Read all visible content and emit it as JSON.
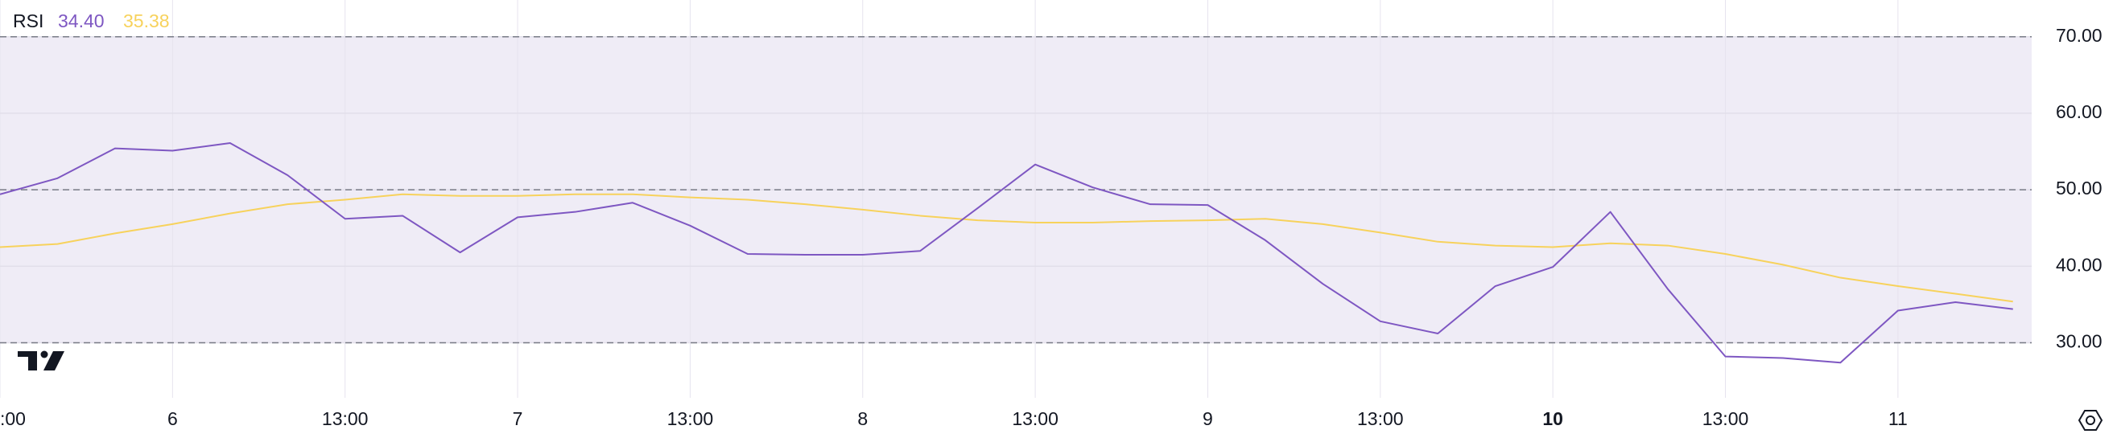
{
  "chart_data": {
    "type": "line",
    "legend": {
      "title": "RSI",
      "values": [
        {
          "value": 34.4,
          "label": "34.40"
        },
        35.38
      ]
    },
    "categories": [
      ":00",
      null,
      null,
      "6",
      null,
      null,
      "13:00",
      null,
      null,
      "7",
      null,
      null,
      "13:00",
      null,
      null,
      "8",
      null,
      null,
      "13:00",
      null,
      null,
      "9",
      null,
      null,
      "13:00",
      null,
      null,
      "10",
      null,
      null,
      "13:00",
      null,
      null,
      "11",
      null,
      null
    ],
    "series": [
      {
        "name": "RSI",
        "color": "#7e57c2",
        "values": [
          49.4,
          51.5,
          55.4,
          55.1,
          56.1,
          51.9,
          46.2,
          46.6,
          41.8,
          46.4,
          47.1,
          48.3,
          45.3,
          41.6,
          41.5,
          41.5,
          42.0,
          47.6,
          53.3,
          50.3,
          48.1,
          48.0,
          43.4,
          37.7,
          32.8,
          31.2,
          37.4,
          39.9,
          47.1,
          37.0,
          28.2,
          28.0,
          27.4,
          34.2,
          35.3,
          34.4
        ]
      },
      {
        "color": "#f7d25c",
        "values": [
          42.5,
          42.9,
          44.3,
          45.5,
          46.9,
          48.1,
          48.7,
          49.4,
          49.2,
          49.2,
          49.4,
          49.4,
          49.0,
          48.7,
          48.1,
          47.4,
          46.6,
          46.0,
          45.7,
          45.7,
          45.9,
          46.0,
          46.2,
          45.5,
          44.4,
          43.2,
          42.7,
          42.5,
          43.0,
          42.7,
          41.6,
          40.2,
          38.5,
          37.4,
          36.4,
          35.38
        ]
      }
    ],
    "ylim": [
      22.8,
      74.8
    ],
    "yticks": [
      {
        "value": 30,
        "label": "30.00"
      },
      {
        "value": 40,
        "label": "40.00"
      },
      {
        "value": 50,
        "label": "50.00"
      },
      {
        "value": 60,
        "label": "60.00"
      },
      {
        "value": 70,
        "label": "70.00"
      }
    ],
    "band": [
      30,
      70
    ],
    "dashed_levels": [
      30,
      50,
      70
    ],
    "band_color": "#efecf6",
    "grid": true
  }
}
